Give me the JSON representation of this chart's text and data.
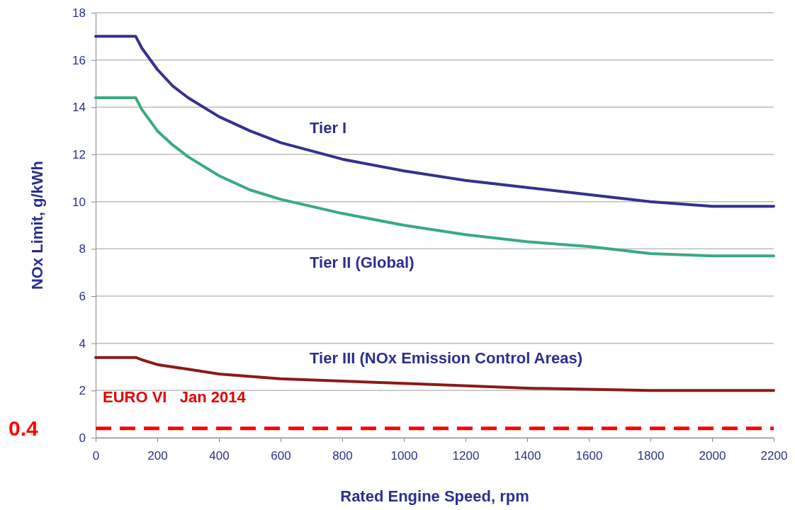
{
  "chart_data": {
    "type": "line",
    "xlabel": "Rated Engine Speed, rpm",
    "ylabel": "NOx Limit, g/kWh",
    "xlim": [
      0,
      2200
    ],
    "xticks": [
      0,
      200,
      400,
      600,
      800,
      1000,
      1200,
      1400,
      1600,
      1800,
      2000,
      2200
    ],
    "ylim": [
      0,
      18
    ],
    "yticks": [
      0,
      2,
      4,
      6,
      8,
      10,
      12,
      14,
      16,
      18
    ],
    "grid": "y",
    "legend": false,
    "marker": "none",
    "line_style": "solid",
    "series": [
      {
        "name": "Tier I",
        "color": "#35318f",
        "x": [
          0,
          130,
          150,
          200,
          250,
          300,
          400,
          500,
          600,
          800,
          1000,
          1200,
          1400,
          1600,
          1800,
          2000,
          2200
        ],
        "values": [
          17,
          17,
          16.5,
          15.6,
          14.9,
          14.4,
          13.6,
          13.0,
          12.5,
          11.8,
          11.3,
          10.9,
          10.6,
          10.3,
          10.0,
          9.8,
          9.8
        ]
      },
      {
        "name": "Tier II (Global)",
        "color": "#3aaa7e",
        "x": [
          0,
          130,
          150,
          200,
          250,
          300,
          400,
          500,
          600,
          800,
          1000,
          1200,
          1400,
          1600,
          1800,
          2000,
          2200
        ],
        "values": [
          14.4,
          14.4,
          13.9,
          13.0,
          12.4,
          11.9,
          11.1,
          10.5,
          10.1,
          9.5,
          9.0,
          8.6,
          8.3,
          8.1,
          7.8,
          7.7,
          7.7
        ]
      },
      {
        "name": "Tier III (NOx Emission Control Areas)",
        "color": "#8b1a1a",
        "x": [
          0,
          130,
          150,
          200,
          300,
          400,
          600,
          800,
          1000,
          1400,
          1800,
          2000,
          2200
        ],
        "values": [
          3.4,
          3.4,
          3.3,
          3.1,
          2.9,
          2.7,
          2.5,
          2.4,
          2.3,
          2.1,
          2.0,
          2.0,
          2.0
        ]
      }
    ],
    "ref_lines": [
      {
        "axis": "y",
        "value": 0.4,
        "label": "0.4",
        "color": "#ff0000",
        "line_style": "dashed"
      }
    ],
    "annotations": [
      "EURO VI   Jan 2014"
    ]
  }
}
